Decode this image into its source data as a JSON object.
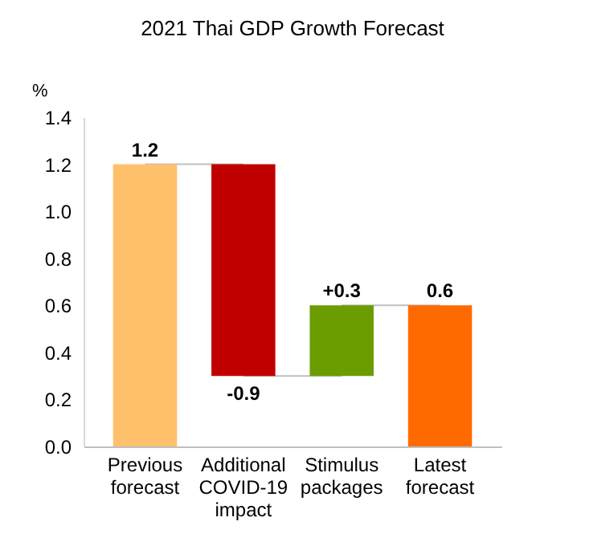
{
  "chart_data": {
    "type": "bar",
    "title": "2021 Thai GDP Growth Forecast",
    "ylabel": "%",
    "categories": [
      "Previous\nforecast",
      "Additional\nCOVID-19\nimpact",
      "Stimulus\npackages",
      "Latest\nforecast"
    ],
    "values": [
      1.2,
      -0.9,
      0.3,
      0.6
    ],
    "base": [
      0,
      1.2,
      0.3,
      0
    ],
    "colors": [
      "#ffc06b",
      "#c00000",
      "#6b9c00",
      "#ff6a00"
    ],
    "value_labels": [
      "1.2",
      "-0.9",
      "+0.3",
      "0.6"
    ],
    "ylim": [
      0,
      1.4
    ],
    "yticks": [
      {
        "value": 0,
        "label": "0.0"
      },
      {
        "value": 0.2,
        "label": "0.2"
      },
      {
        "value": 0.4,
        "label": "0.4"
      },
      {
        "value": 0.6,
        "label": "0.6"
      },
      {
        "value": 0.8,
        "label": "0.8"
      },
      {
        "value": 1.0,
        "label": "1.0"
      },
      {
        "value": 1.2,
        "label": "1.2"
      },
      {
        "value": 1.4,
        "label": "1.4"
      }
    ],
    "grid": false
  }
}
